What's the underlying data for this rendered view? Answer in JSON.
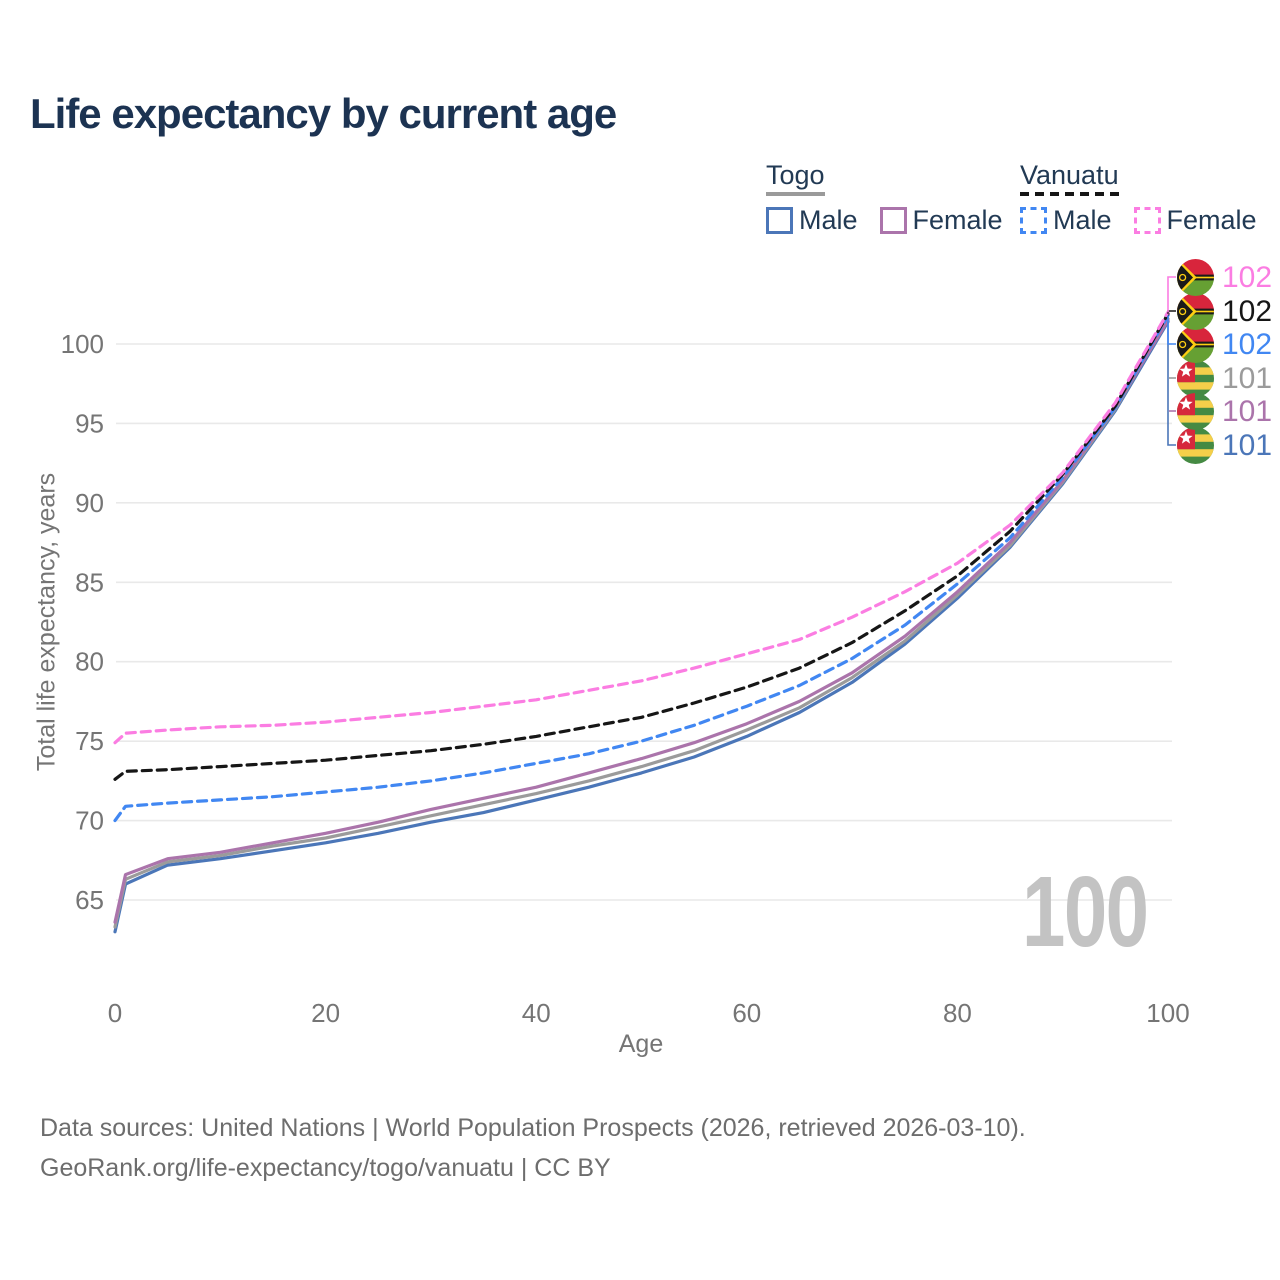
{
  "title": "Life expectancy by current age",
  "legend": {
    "groups": [
      {
        "label": "Togo",
        "underline": "solid",
        "underline_color": "#9a9a9a",
        "items": [
          {
            "label": "Male",
            "color": "#4b76b8",
            "dash": false
          },
          {
            "label": "Female",
            "color": "#ab74ab",
            "dash": false
          }
        ]
      },
      {
        "label": "Vanuatu",
        "underline": "dashed",
        "underline_color": "#151515",
        "items": [
          {
            "label": "Male",
            "color": "#4187f2",
            "dash": true
          },
          {
            "label": "Female",
            "color": "#fb7de2",
            "dash": true
          }
        ]
      }
    ]
  },
  "chart_data": {
    "type": "line",
    "title": "Life expectancy by current age",
    "xlabel": "Age",
    "ylabel": "Total life expectancy, years",
    "x_ticks": [
      0,
      20,
      40,
      60,
      80,
      100
    ],
    "y_ticks": [
      65,
      70,
      75,
      80,
      85,
      90,
      95,
      100
    ],
    "xlim": [
      0,
      100
    ],
    "ylim": [
      62.5,
      103.5
    ],
    "grid": "horizontal",
    "legend_position": "top-right",
    "watermark": "100",
    "ages": [
      0,
      1,
      5,
      10,
      15,
      20,
      25,
      30,
      35,
      40,
      45,
      50,
      55,
      60,
      65,
      70,
      75,
      80,
      85,
      90,
      95,
      100
    ],
    "series": [
      {
        "id": "togo_male",
        "name": "Togo Male",
        "country": "Togo",
        "sex": "Male",
        "color": "#4b76b8",
        "dash": false,
        "end_label": "101",
        "row": 5,
        "values": [
          63.0,
          66.0,
          67.2,
          67.6,
          68.1,
          68.6,
          69.2,
          69.9,
          70.5,
          71.3,
          72.1,
          73.0,
          74.0,
          75.3,
          76.8,
          78.7,
          81.1,
          84.0,
          87.2,
          91.2,
          95.8,
          101.4
        ]
      },
      {
        "id": "togo_both",
        "name": "Togo Both sexes",
        "country": "Togo",
        "sex": "Both",
        "color": "#9b9b9b",
        "dash": false,
        "end_label": "101",
        "row": 3,
        "values": [
          63.3,
          66.3,
          67.4,
          67.8,
          68.4,
          68.9,
          69.6,
          70.3,
          71.0,
          71.7,
          72.5,
          73.4,
          74.4,
          75.7,
          77.1,
          79.0,
          81.3,
          84.2,
          87.3,
          91.3,
          95.9,
          101.6
        ]
      },
      {
        "id": "togo_female",
        "name": "Togo Female",
        "country": "Togo",
        "sex": "Female",
        "color": "#ab74ab",
        "dash": false,
        "end_label": "101",
        "row": 4,
        "values": [
          63.6,
          66.6,
          67.6,
          68.0,
          68.6,
          69.2,
          69.9,
          70.7,
          71.4,
          72.1,
          73.0,
          73.9,
          74.9,
          76.1,
          77.5,
          79.3,
          81.6,
          84.4,
          87.5,
          91.4,
          96.0,
          101.5
        ]
      },
      {
        "id": "vanuatu_male",
        "name": "Vanuatu Male",
        "country": "Vanuatu",
        "sex": "Male",
        "color": "#4187f2",
        "dash": true,
        "end_label": "102",
        "row": 2,
        "values": [
          70.0,
          70.9,
          71.1,
          71.3,
          71.5,
          71.8,
          72.1,
          72.5,
          73.0,
          73.6,
          74.2,
          75.0,
          76.0,
          77.2,
          78.5,
          80.2,
          82.3,
          84.9,
          87.8,
          91.6,
          96.0,
          101.8
        ]
      },
      {
        "id": "vanuatu_both",
        "name": "Vanuatu Both sexes",
        "country": "Vanuatu",
        "sex": "Both",
        "color": "#161616",
        "dash": true,
        "end_label": "102",
        "row": 1,
        "values": [
          72.6,
          73.1,
          73.2,
          73.4,
          73.6,
          73.8,
          74.1,
          74.4,
          74.8,
          75.3,
          75.9,
          76.5,
          77.4,
          78.4,
          79.6,
          81.2,
          83.2,
          85.4,
          88.2,
          91.8,
          96.1,
          101.9
        ]
      },
      {
        "id": "vanuatu_female",
        "name": "Vanuatu Female",
        "country": "Vanuatu",
        "sex": "Female",
        "color": "#fb7de2",
        "dash": true,
        "end_label": "102",
        "row": 0,
        "values": [
          74.9,
          75.5,
          75.7,
          75.9,
          76.0,
          76.2,
          76.5,
          76.8,
          77.2,
          77.6,
          78.2,
          78.8,
          79.6,
          80.5,
          81.4,
          82.8,
          84.4,
          86.2,
          88.6,
          91.9,
          96.3,
          102.0
        ]
      }
    ]
  },
  "flags": {
    "togo": {
      "green": "#458a43",
      "yellow": "#f5cf4a",
      "red": "#d6283c",
      "star": "#ffffff"
    },
    "vanuatu": {
      "red": "#d8253c",
      "green": "#66a033",
      "black": "#1a1a1a",
      "yellow": "#fdce12"
    }
  },
  "colors": {
    "title_text": "#1c3352",
    "grid": "#e9e9e9",
    "tick_text": "#757575",
    "watermark": "#c3c3c3",
    "footer_text": "#6d6d6d"
  },
  "footer": {
    "line1": "Data sources: United Nations | World Population Prospects (2026, retrieved 2026-03-10).",
    "line2": "GeoRank.org/life-expectancy/togo/vanuatu | CC BY"
  }
}
